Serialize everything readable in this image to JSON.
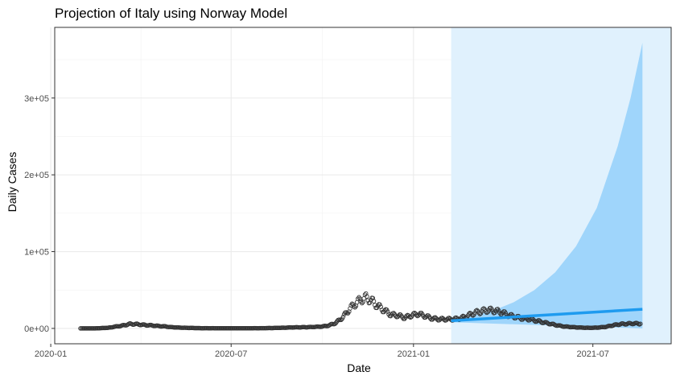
{
  "chart_data": {
    "type": "scatter",
    "title": "Projection of Italy using Norway Model",
    "xlabel": "Date",
    "ylabel": "Daily Cases",
    "x_range": [
      "2020-01-05",
      "2021-09-18"
    ],
    "ylim": [
      -20000,
      392000
    ],
    "x_ticks": [
      {
        "date": "2020-01-01",
        "label": "2020-01"
      },
      {
        "date": "2020-07-01",
        "label": "2020-07"
      },
      {
        "date": "2021-01-01",
        "label": "2021-01"
      },
      {
        "date": "2021-07-01",
        "label": "2021-07"
      }
    ],
    "y_ticks": [
      {
        "value": 0,
        "label": "0e+00"
      },
      {
        "value": 100000,
        "label": "1e+05"
      },
      {
        "value": 200000,
        "label": "2e+05"
      },
      {
        "value": 300000,
        "label": "3e+05"
      }
    ],
    "grid": true,
    "projection_shading": {
      "start": "2021-02-08",
      "end": "2021-09-18",
      "color": "#e0f1fd"
    },
    "confidence_band": {
      "color": "#9fd5fb",
      "upper": [
        {
          "date": "2021-02-08",
          "value": 12000
        },
        {
          "date": "2021-03-01",
          "value": 16000
        },
        {
          "date": "2021-03-22",
          "value": 23000
        },
        {
          "date": "2021-04-12",
          "value": 34000
        },
        {
          "date": "2021-05-03",
          "value": 50000
        },
        {
          "date": "2021-05-24",
          "value": 73000
        },
        {
          "date": "2021-06-14",
          "value": 107000
        },
        {
          "date": "2021-07-05",
          "value": 157000
        },
        {
          "date": "2021-07-26",
          "value": 237000
        },
        {
          "date": "2021-08-08",
          "value": 300000
        },
        {
          "date": "2021-08-20",
          "value": 372000
        }
      ],
      "lower": [
        {
          "date": "2021-08-20",
          "value": 0
        },
        {
          "date": "2021-02-08",
          "value": 8000
        }
      ]
    },
    "fit_line": {
      "color": "#1e9bef",
      "points": [
        {
          "date": "2021-02-08",
          "value": 10000
        },
        {
          "date": "2021-08-20",
          "value": 25000
        }
      ]
    },
    "series": [
      {
        "points": [
          [
            "2020-01-31",
            0
          ],
          [
            "2020-02-14",
            0
          ],
          [
            "2020-02-28",
            800
          ],
          [
            "2020-03-07",
            2500
          ],
          [
            "2020-03-14",
            3800
          ],
          [
            "2020-03-21",
            5800
          ],
          [
            "2020-03-28",
            5500
          ],
          [
            "2020-04-04",
            4500
          ],
          [
            "2020-04-11",
            4000
          ],
          [
            "2020-04-18",
            3200
          ],
          [
            "2020-04-25",
            2600
          ],
          [
            "2020-05-02",
            1600
          ],
          [
            "2020-05-09",
            1100
          ],
          [
            "2020-05-16",
            800
          ],
          [
            "2020-05-23",
            550
          ],
          [
            "2020-06-01",
            300
          ],
          [
            "2020-06-15",
            250
          ],
          [
            "2020-07-01",
            200
          ],
          [
            "2020-07-15",
            220
          ],
          [
            "2020-08-01",
            300
          ],
          [
            "2020-08-15",
            600
          ],
          [
            "2020-09-01",
            1300
          ],
          [
            "2020-09-15",
            1600
          ],
          [
            "2020-10-01",
            2400
          ],
          [
            "2020-10-08",
            4000
          ],
          [
            "2020-10-15",
            7500
          ],
          [
            "2020-10-22",
            15000
          ],
          [
            "2020-10-29",
            26000
          ],
          [
            "2020-11-05",
            34000
          ],
          [
            "2020-11-10",
            38000
          ],
          [
            "2020-11-14",
            40000
          ],
          [
            "2020-11-19",
            37000
          ],
          [
            "2020-11-25",
            30000
          ],
          [
            "2020-12-02",
            24000
          ],
          [
            "2020-12-09",
            18000
          ],
          [
            "2020-12-16",
            17000
          ],
          [
            "2020-12-23",
            14000
          ],
          [
            "2020-12-30",
            17000
          ],
          [
            "2021-01-06",
            19000
          ],
          [
            "2021-01-13",
            16000
          ],
          [
            "2021-01-20",
            13000
          ],
          [
            "2021-01-27",
            12000
          ],
          [
            "2021-02-03",
            12000
          ],
          [
            "2021-02-10",
            12000
          ],
          [
            "2021-02-17",
            13000
          ],
          [
            "2021-02-24",
            16000
          ],
          [
            "2021-03-03",
            20000
          ],
          [
            "2021-03-10",
            22000
          ],
          [
            "2021-03-17",
            24000
          ],
          [
            "2021-03-24",
            23000
          ],
          [
            "2021-03-31",
            21000
          ],
          [
            "2021-04-07",
            17000
          ],
          [
            "2021-04-14",
            15000
          ],
          [
            "2021-04-21",
            13000
          ],
          [
            "2021-04-28",
            12000
          ],
          [
            "2021-05-05",
            10000
          ],
          [
            "2021-05-12",
            8000
          ],
          [
            "2021-05-19",
            6000
          ],
          [
            "2021-05-26",
            4000
          ],
          [
            "2021-06-02",
            2500
          ],
          [
            "2021-06-09",
            1800
          ],
          [
            "2021-06-16",
            1200
          ],
          [
            "2021-06-23",
            900
          ],
          [
            "2021-06-30",
            800
          ],
          [
            "2021-07-07",
            1200
          ],
          [
            "2021-07-14",
            2000
          ],
          [
            "2021-07-21",
            4000
          ],
          [
            "2021-07-28",
            5500
          ],
          [
            "2021-08-04",
            6000
          ],
          [
            "2021-08-11",
            6500
          ],
          [
            "2021-08-18",
            6000
          ]
        ]
      }
    ]
  }
}
